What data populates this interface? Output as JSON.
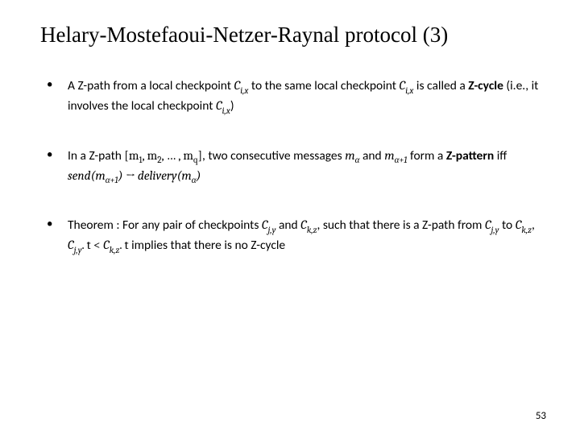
{
  "slide": {
    "title": "Helary-Mostefaoui-Netzer-Raynal protocol (3)",
    "title_fontsize": 27,
    "title_color": "#000000",
    "body_font": "Calibri",
    "body_fontsize": 15.5,
    "body_color": "#000000",
    "background_color": "#ffffff",
    "bullets": [
      {
        "pre1": "A Z-path from a local checkpoint ",
        "math1": "C",
        "sub1": "i,x",
        "mid1": " to the same local checkpoint ",
        "math2": "C",
        "sub2": "i,x",
        "mid2": " is called a ",
        "bold": "Z-cycle",
        "post1": " (i.e., it involves the local checkpoint ",
        "math3": "C",
        "sub3": "i,x",
        "post2": ")"
      },
      {
        "pre1": "In a Z-path ",
        "seq": "[m",
        "seqsub1": "1",
        "seqmid1": ", m",
        "seqsub2": "2",
        "seqmid2": ", … , m",
        "seqsub3": "q",
        "seqend": "]",
        "mid1": ", two consecutive messages ",
        "m_a": "m",
        "m_a_sub": "α",
        "and": " and ",
        "m_a1": "m",
        "m_a1_sub": "α+1",
        "mid2": " form a ",
        "bold": "Z-pattern",
        "iff": " iff ",
        "send_pre": "send(m",
        "send_sub": "α+1",
        "send_post": ") → delivery(m",
        "del_sub": "α",
        "del_post": ")"
      },
      {
        "pre1": "Theorem : For any pair of checkpoints ",
        "c1": "C",
        "c1sub": "j,y",
        "and1": " and ",
        "c2": "C",
        "c2sub": "k,z",
        "mid1": ", such that there is a Z-path from ",
        "c3": "C",
        "c3sub": "j,y",
        "to": " to ",
        "c4": "C",
        "c4sub": "k,z",
        "comma": ", ",
        "c5": "C",
        "c5sub": "j,y",
        "dot_t1": ". t < ",
        "c6": "C",
        "c6sub": "k,z",
        "dot_t2": ". t",
        "post": " implies that there is no Z-cycle"
      }
    ],
    "page_number": "53",
    "page_number_fontsize": 13
  }
}
